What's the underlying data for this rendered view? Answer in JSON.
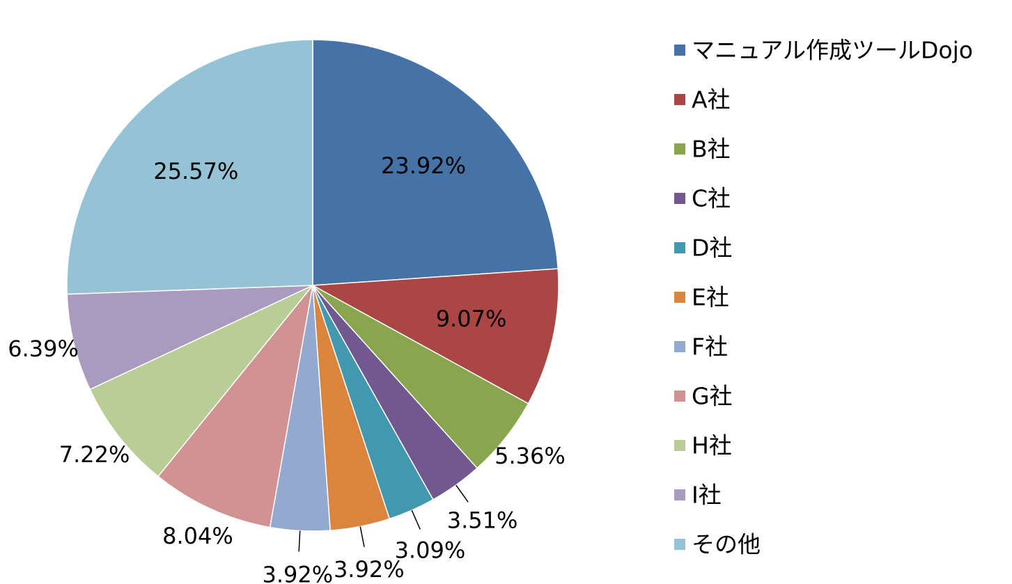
{
  "chart_data": {
    "type": "pie",
    "categories": [
      "マニュアル作成ツールDojo",
      "A社",
      "B社",
      "C社",
      "D社",
      "E社",
      "F社",
      "G社",
      "H社",
      "I社",
      "その他"
    ],
    "values": [
      23.92,
      9.07,
      5.36,
      3.51,
      3.09,
      3.92,
      3.92,
      8.04,
      7.22,
      6.39,
      25.57
    ],
    "value_labels": [
      "23.92%",
      "9.07%",
      "5.36%",
      "3.51%",
      "3.09%",
      "3.92%",
      "3.92%",
      "8.04%",
      "7.22%",
      "6.39%",
      "25.57%"
    ],
    "colors": [
      "#4572a7",
      "#aa4643",
      "#89a54e",
      "#71588f",
      "#4198af",
      "#db843d",
      "#93a9cf",
      "#d19392",
      "#b9cd96",
      "#a99bbd",
      "#93c3d4"
    ],
    "legend": "right"
  }
}
